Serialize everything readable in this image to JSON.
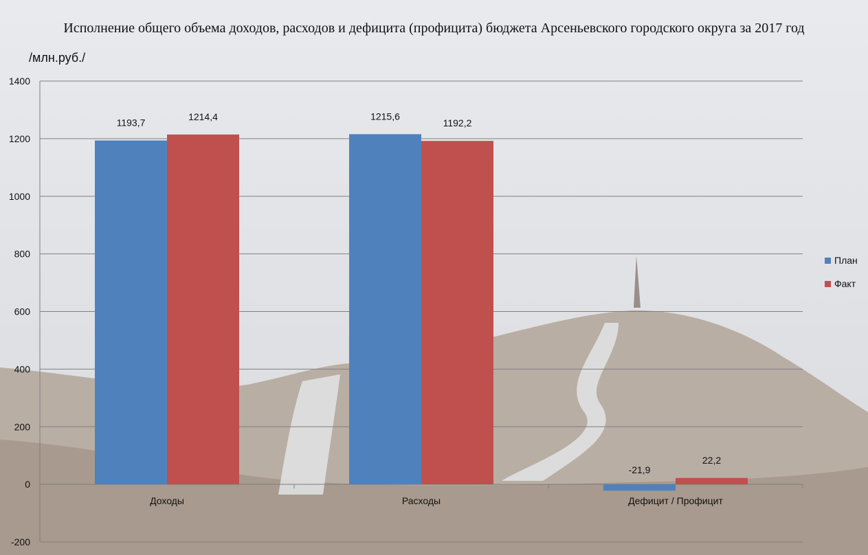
{
  "chart_data": {
    "type": "bar",
    "title": "Исполнение общего объема доходов, расходов и дефицита (профицита) бюджета Арсеньевского городского округа за 2017 год",
    "ylabel": "/млн.руб./",
    "xlabel": "",
    "categories": [
      "Доходы",
      "Расходы",
      "Дефицит / Профицит"
    ],
    "series": [
      {
        "name": "План",
        "color": "#4f81bd",
        "values": [
          1193.7,
          1215.6,
          -21.9
        ],
        "labels": [
          "1193,7",
          "1215,6",
          "-21,9"
        ]
      },
      {
        "name": "Факт",
        "color": "#c0504d",
        "values": [
          1214.4,
          1192.2,
          22.2
        ],
        "labels": [
          "1214,4",
          "1192,2",
          "22,2"
        ]
      }
    ],
    "ylim": [
      -200,
      1400
    ],
    "yticks": [
      -200,
      0,
      200,
      400,
      600,
      800,
      1000,
      1200,
      1400
    ],
    "grid": true,
    "legend_position": "right"
  }
}
